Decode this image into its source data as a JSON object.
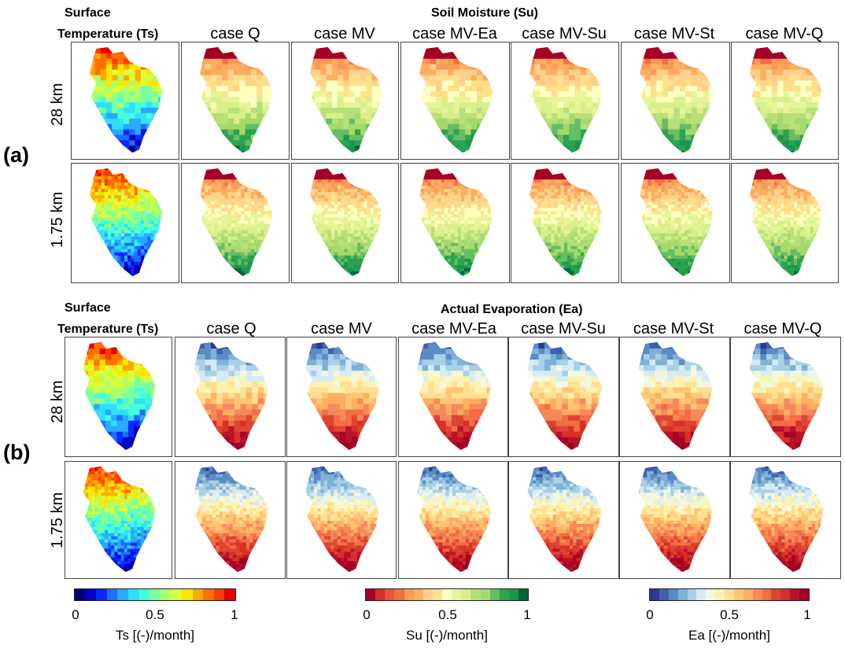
{
  "section_a": {
    "label": "(a)",
    "ts_header_line1": "Surface",
    "ts_header_line2": "Temperature (Ts)",
    "title": "Soil Moisture (Su)",
    "cases": [
      "case Q",
      "case MV",
      "case MV-Ea",
      "case MV-Su",
      "case MV-St",
      "case MV-Q"
    ],
    "rows": [
      "28 km",
      "1.75 km"
    ]
  },
  "section_b": {
    "label": "(b)",
    "ts_header_line1": "Surface",
    "ts_header_line2": "Temperature (Ts)",
    "title": "Actual Evaporation (Ea)",
    "cases": [
      "case Q",
      "case MV",
      "case MV-Ea",
      "case MV-Su",
      "case MV-St",
      "case MV-Q"
    ],
    "rows": [
      "28 km",
      "1.75 km"
    ]
  },
  "colorbars": [
    {
      "id": "ts",
      "title": "Ts [(-)/month]",
      "ticks": [
        "0",
        "0.5",
        "1"
      ],
      "colors": [
        "#00007f",
        "#0000c8",
        "#0a28ff",
        "#1e6eff",
        "#28aaff",
        "#2ee0ff",
        "#46ffd6",
        "#7affa0",
        "#aaff70",
        "#d8ff3c",
        "#ffe600",
        "#ffaa00",
        "#ff7000",
        "#ff3c00",
        "#e60000"
      ]
    },
    {
      "id": "su",
      "title": "Su [(-)/month]",
      "ticks": [
        "0",
        "0.5",
        "1"
      ],
      "colors": [
        "#a50026",
        "#d73027",
        "#e8553a",
        "#f46d43",
        "#f99b57",
        "#fdae61",
        "#fed18a",
        "#fee08b",
        "#ffffbf",
        "#e6f598",
        "#d9ef8b",
        "#b8e07a",
        "#a6d96a",
        "#66bd63",
        "#2da34f",
        "#1a9850",
        "#006837"
      ]
    },
    {
      "id": "ea",
      "title": "Ea [(-)/month]",
      "ticks": [
        "0",
        "0.5",
        "1"
      ],
      "colors": [
        "#313695",
        "#4060ad",
        "#5a8bc4",
        "#7fb0d6",
        "#a8d0e6",
        "#d6ecf4",
        "#f2f8e0",
        "#fff2b0",
        "#fee090",
        "#fdc677",
        "#fdae61",
        "#f6895a",
        "#f46d43",
        "#dd4533",
        "#d73027",
        "#b8132a",
        "#a50026"
      ]
    }
  ]
}
